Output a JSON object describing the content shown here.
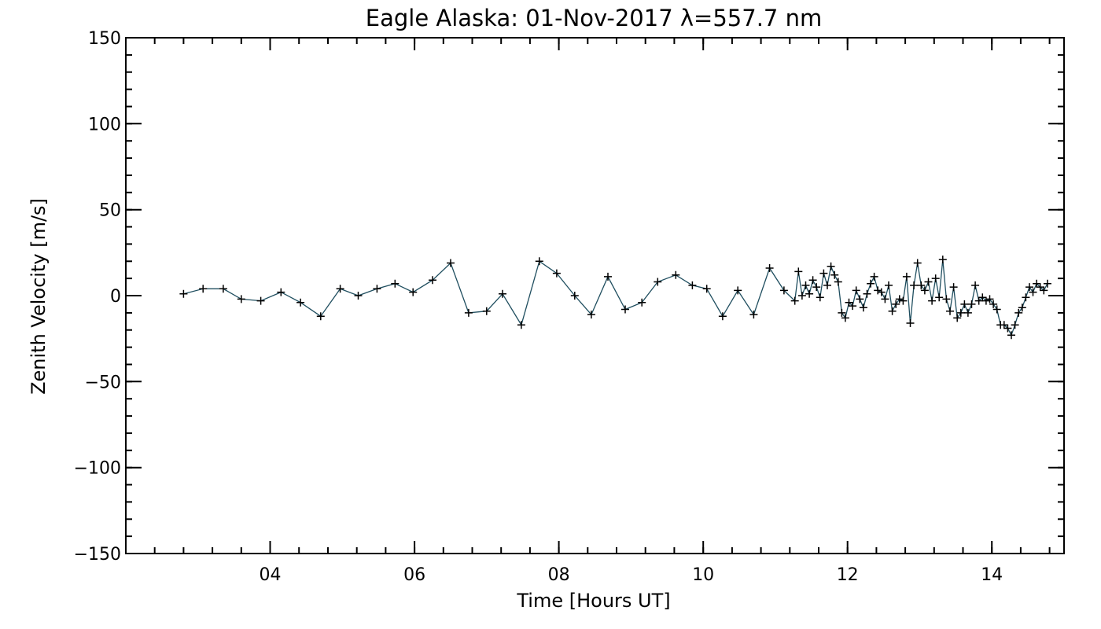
{
  "chart_data": {
    "type": "line",
    "title": "Eagle Alaska: 01-Nov-2017 λ=557.7 nm",
    "xlabel": "Time [Hours UT]",
    "ylabel": "Zenith Velocity [m/s]",
    "xlim": [
      2.0,
      15.0
    ],
    "ylim": [
      -150,
      150
    ],
    "xticks": [
      {
        "value": 4,
        "label": "04"
      },
      {
        "value": 6,
        "label": "06"
      },
      {
        "value": 8,
        "label": "08"
      },
      {
        "value": 10,
        "label": "10"
      },
      {
        "value": 12,
        "label": "12"
      },
      {
        "value": 14,
        "label": "14"
      }
    ],
    "yticks": [
      {
        "value": 150,
        "label": "150"
      },
      {
        "value": 100,
        "label": "100"
      },
      {
        "value": 50,
        "label": "50"
      },
      {
        "value": 0,
        "label": "0"
      },
      {
        "value": -50,
        "label": "−50"
      },
      {
        "value": -100,
        "label": "−100"
      },
      {
        "value": -150,
        "label": "−150"
      }
    ],
    "x_minor_step": 0.4,
    "y_minor_step": 10,
    "grid": false,
    "line_color": "#1f4e5f",
    "marker": "plus",
    "series": [
      {
        "x": [
          2.8,
          3.07,
          3.35,
          3.6,
          3.87,
          4.15,
          4.42,
          4.7,
          4.97,
          5.22,
          5.48,
          5.73,
          5.98,
          6.25,
          6.5,
          6.75,
          7.0,
          7.22,
          7.48,
          7.73,
          7.97,
          8.22,
          8.45,
          8.68,
          8.92,
          9.15,
          9.37,
          9.62,
          9.85,
          10.05,
          10.27,
          10.48,
          10.7,
          10.92,
          11.12,
          11.27,
          11.32,
          11.37,
          11.42,
          11.47,
          11.52,
          11.57,
          11.62,
          11.67,
          11.72,
          11.77,
          11.82,
          11.87,
          11.92,
          11.97,
          12.02,
          12.07,
          12.12,
          12.17,
          12.22,
          12.27,
          12.32,
          12.37,
          12.42,
          12.47,
          12.52,
          12.57,
          12.62,
          12.67,
          12.72,
          12.77,
          12.82,
          12.87,
          12.92,
          12.97,
          13.02,
          13.07,
          13.12,
          13.17,
          13.22,
          13.27,
          13.32,
          13.37,
          13.42,
          13.47,
          13.52,
          13.57,
          13.62,
          13.67,
          13.72,
          13.77,
          13.82,
          13.87,
          13.92,
          13.97,
          14.02,
          14.07,
          14.12,
          14.17,
          14.22,
          14.27,
          14.32,
          14.37,
          14.42,
          14.47,
          14.52,
          14.57,
          14.62,
          14.67,
          14.72,
          14.77
        ],
        "y": [
          1,
          4,
          4,
          -2,
          -3,
          2,
          -4,
          -12,
          4,
          0,
          4,
          7,
          2,
          9,
          19,
          -10,
          -9,
          1,
          -17,
          20,
          13,
          0,
          -11,
          11,
          -8,
          -4,
          8,
          12,
          6,
          4,
          -12,
          3,
          -11,
          16,
          3,
          -3,
          14,
          0,
          6,
          1,
          9,
          5,
          -1,
          13,
          6,
          17,
          12,
          8,
          -10,
          -13,
          -4,
          -6,
          3,
          -2,
          -7,
          1,
          7,
          11,
          3,
          2,
          -2,
          6,
          -9,
          -5,
          -2,
          -3,
          11,
          -16,
          6,
          19,
          6,
          3,
          8,
          -3,
          10,
          -1,
          21,
          -2,
          -9,
          5,
          -13,
          -10,
          -5,
          -10,
          -5,
          6,
          -3,
          -1,
          -3,
          -2,
          -5,
          -8,
          -17,
          -17,
          -19,
          -23,
          -17,
          -10,
          -7,
          -1,
          5,
          2,
          7,
          5,
          3,
          7
        ]
      }
    ]
  }
}
